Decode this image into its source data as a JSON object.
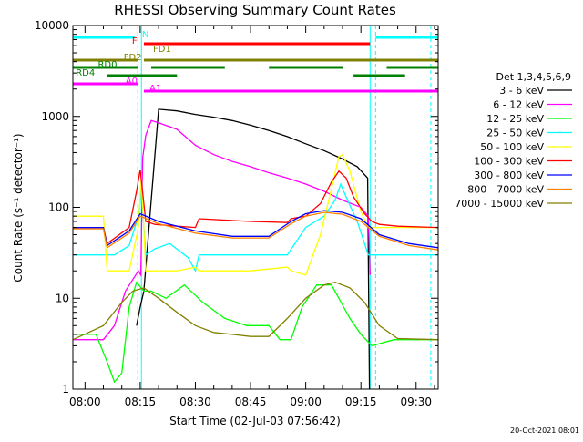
{
  "page": {
    "title": "RHESSI Observing Summary Count Rates",
    "timestamp": "20-Oct-2021 08:01"
  },
  "chart_data": {
    "type": "line",
    "title": "RHESSI Observing Summary Count Rates",
    "xlabel": "Start Time (02-Jul-03 07:56:42)",
    "ylabel": "Count Rate (s⁻¹ detector⁻¹)",
    "xlim": [
      "07:56:42",
      "09:36:00"
    ],
    "ylim": [
      1,
      10000
    ],
    "yscale": "log",
    "xticks": [
      "08:00",
      "08:15",
      "08:30",
      "08:45",
      "09:00",
      "09:15",
      "09:30"
    ],
    "yticks": [
      "1",
      "10",
      "100",
      "1000",
      "10000"
    ],
    "vlines": [
      {
        "time": "08:14:20",
        "style": "dashed",
        "color": "#00ffff"
      },
      {
        "time": "08:15:20",
        "style": "solid",
        "color": "#00ffff"
      },
      {
        "time": "09:17:30",
        "style": "solid",
        "color": "#00ffff"
      },
      {
        "time": "09:19:00",
        "style": "dashed",
        "color": "#00ffff"
      },
      {
        "time": "09:34:00",
        "style": "dashed",
        "color": "#00ffff"
      }
    ],
    "flag_rows": [
      {
        "label": "N",
        "color": "#00ffff",
        "label_time": "08:15:30",
        "segments": [
          [
            "07:56:42",
            "08:13:30"
          ],
          [
            "09:19:00",
            "09:36:00"
          ]
        ]
      },
      {
        "label": "F",
        "color": "#ff0000",
        "label_time": "08:12:45",
        "segments": [
          [
            "08:16:00",
            "09:17:30"
          ]
        ]
      },
      {
        "label": "FD1",
        "color": "#808000",
        "label_time": "08:18:30",
        "segments": []
      },
      {
        "label": "FD2",
        "color": "#808000",
        "label_time": "08:10:30",
        "segments": [
          [
            "07:56:42",
            "08:14:30"
          ],
          [
            "08:16:00",
            "09:36:00"
          ]
        ]
      },
      {
        "label": "RD0",
        "color": "#008000",
        "label_time": "08:03:30",
        "segments": [
          [
            "07:56:42",
            "08:14:20"
          ],
          [
            "08:18:00",
            "08:38:00"
          ],
          [
            "08:50:00",
            "09:10:00"
          ],
          [
            "09:22:00",
            "09:36:00"
          ]
        ]
      },
      {
        "label": "RD4",
        "color": "#008000",
        "label_time": "07:57:30",
        "segments": [
          [
            "08:06:00",
            "08:25:00"
          ],
          [
            "09:13:00",
            "09:27:00"
          ]
        ]
      },
      {
        "label": "A0",
        "color": "#ff00ff",
        "label_time": "08:11:00",
        "segments": [
          [
            "07:56:42",
            "08:14:20"
          ]
        ]
      },
      {
        "label": "A1",
        "color": "#ff00ff",
        "label_time": "08:17:30",
        "segments": [
          [
            "08:16:00",
            "09:36:00"
          ]
        ]
      }
    ],
    "legend_title": "Det 1,3,4,5,6,9",
    "legend_position": "right",
    "series": [
      {
        "name": "3 - 6 keV",
        "color": "#000000",
        "x": [
          "08:14:00",
          "08:15:00",
          "08:16:00",
          "08:20:00",
          "08:25:00",
          "08:30:00",
          "08:35:00",
          "08:40:00",
          "08:45:00",
          "08:50:00",
          "08:55:00",
          "09:00:00",
          "09:05:00",
          "09:10:00",
          "09:14:00",
          "09:16:50",
          "09:17:20"
        ],
        "y": [
          5,
          8,
          12,
          1200,
          1150,
          1050,
          980,
          900,
          800,
          700,
          600,
          500,
          420,
          340,
          280,
          210,
          1
        ]
      },
      {
        "name": "6 - 12 keV",
        "color": "#ff00ff",
        "x": [
          "07:56:42",
          "08:05:00",
          "08:08:00",
          "08:11:00",
          "08:14:30",
          "08:15:10",
          "08:15:40",
          "08:16:30",
          "08:18:00",
          "08:20:00",
          "08:25:00",
          "08:30:00",
          "08:35:00",
          "08:40:00",
          "08:45:00",
          "08:50:00",
          "08:55:00",
          "09:00:00",
          "09:05:00",
          "09:10:00",
          "09:15:00",
          "09:17:00",
          "09:17:30"
        ],
        "y": [
          3.5,
          3.5,
          5,
          12,
          20,
          18,
          350,
          620,
          900,
          850,
          720,
          480,
          380,
          320,
          280,
          240,
          210,
          180,
          150,
          120,
          100,
          80,
          18
        ]
      },
      {
        "name": "12 - 25 keV",
        "color": "#00ff00",
        "x": [
          "07:56:42",
          "08:03:00",
          "08:06:00",
          "08:08:00",
          "08:10:00",
          "08:12:00",
          "08:14:00",
          "08:16:00",
          "08:18:00",
          "08:22:00",
          "08:27:00",
          "08:32:00",
          "08:38:00",
          "08:44:00",
          "08:50:00",
          "08:53:00",
          "08:56:00",
          "08:59:00",
          "09:03:00",
          "09:07:00",
          "09:09:00",
          "09:12:00",
          "09:15:00",
          "09:18:00",
          "09:24:00",
          "09:30:00",
          "09:36:00"
        ],
        "y": [
          4,
          4,
          2,
          1.2,
          1.5,
          8,
          15,
          12,
          12,
          10,
          14,
          9,
          6,
          5,
          5,
          3.5,
          3.5,
          8,
          14,
          14,
          10,
          6,
          4,
          3,
          3.5,
          3.5,
          3.5
        ]
      },
      {
        "name": "25 - 50 keV",
        "color": "#00ffff",
        "x": [
          "07:56:42",
          "08:05:00",
          "08:08:00",
          "08:12:00",
          "08:14:30",
          "08:15:20",
          "08:16:30",
          "08:19:00",
          "08:23:00",
          "08:28:00",
          "08:30:00",
          "08:31:00",
          "08:40:00",
          "08:50:00",
          "08:55:00",
          "09:00:00",
          "09:05:00",
          "09:08:00",
          "09:09:30",
          "09:11:00",
          "09:14:00",
          "09:17:00",
          "09:20:00",
          "09:25:00",
          "09:36:00"
        ],
        "y": [
          30,
          30,
          30,
          38,
          80,
          150,
          30,
          35,
          40,
          28,
          20,
          30,
          30,
          30,
          30,
          60,
          80,
          120,
          180,
          130,
          70,
          30,
          30,
          30,
          30
        ]
      },
      {
        "name": "50 - 100 keV",
        "color": "#ffff00",
        "x": [
          "07:56:42",
          "08:05:00",
          "08:06:00",
          "08:12:00",
          "08:14:30",
          "08:15:20",
          "08:16:30",
          "08:19:00",
          "08:25:00",
          "08:30:00",
          "08:31:00",
          "08:45:00",
          "08:55:00",
          "08:56:00",
          "09:00:00",
          "09:04:00",
          "09:07:00",
          "09:09:00",
          "09:10:00",
          "09:12:00",
          "09:15:00",
          "09:17:00",
          "09:20:00",
          "09:25:00",
          "09:36:00"
        ],
        "y": [
          80,
          80,
          20,
          20,
          60,
          230,
          20,
          20,
          20,
          22,
          20,
          20,
          22,
          20,
          18,
          50,
          160,
          360,
          380,
          250,
          90,
          60,
          60,
          60,
          60
        ]
      },
      {
        "name": "100 - 300 keV",
        "color": "#ff0000",
        "x": [
          "07:56:42",
          "08:05:00",
          "08:06:00",
          "08:12:00",
          "08:14:00",
          "08:15:00",
          "08:16:30",
          "08:19:00",
          "08:25:00",
          "08:30:00",
          "08:31:00",
          "08:45:00",
          "08:55:00",
          "08:56:00",
          "09:00:00",
          "09:04:00",
          "09:07:00",
          "09:09:00",
          "09:11:00",
          "09:13:00",
          "09:16:00",
          "09:18:00",
          "09:20:00",
          "09:25:00",
          "09:36:00"
        ],
        "y": [
          60,
          60,
          40,
          60,
          150,
          260,
          70,
          65,
          62,
          60,
          75,
          70,
          68,
          75,
          80,
          110,
          190,
          250,
          210,
          130,
          85,
          70,
          65,
          62,
          60
        ]
      },
      {
        "name": "300 - 800 keV",
        "color": "#0000ff",
        "x": [
          "07:56:42",
          "08:05:00",
          "08:06:00",
          "08:12:00",
          "08:15:00",
          "08:20:00",
          "08:30:00",
          "08:40:00",
          "08:50:00",
          "08:56:00",
          "09:00:00",
          "09:05:00",
          "09:10:00",
          "09:15:00",
          "09:20:00",
          "09:28:00",
          "09:36:00"
        ],
        "y": [
          60,
          60,
          38,
          55,
          85,
          70,
          55,
          48,
          48,
          70,
          85,
          92,
          88,
          75,
          50,
          40,
          36
        ]
      },
      {
        "name": "800 - 7000 keV",
        "color": "#ff8000",
        "x": [
          "07:56:42",
          "08:05:00",
          "08:06:00",
          "08:12:00",
          "08:15:00",
          "08:20:00",
          "08:30:00",
          "08:40:00",
          "08:50:00",
          "08:56:00",
          "09:00:00",
          "09:05:00",
          "09:10:00",
          "09:15:00",
          "09:20:00",
          "09:28:00",
          "09:36:00"
        ],
        "y": [
          58,
          58,
          36,
          52,
          80,
          66,
          52,
          46,
          46,
          66,
          80,
          88,
          84,
          70,
          48,
          38,
          34
        ]
      },
      {
        "name": "7000 - 15000 keV",
        "color": "#808000",
        "x": [
          "07:56:42",
          "08:05:00",
          "08:10:00",
          "08:13:00",
          "08:16:00",
          "08:20:00",
          "08:25:00",
          "08:30:00",
          "08:35:00",
          "08:40:00",
          "08:45:00",
          "08:50:00",
          "08:55:00",
          "09:00:00",
          "09:05:00",
          "09:08:00",
          "09:12:00",
          "09:16:00",
          "09:20:00",
          "09:25:00",
          "09:36:00"
        ],
        "y": [
          3.5,
          5,
          9,
          12,
          13,
          10,
          7,
          5,
          4.2,
          4,
          3.8,
          3.8,
          6,
          10,
          14,
          15,
          13,
          9,
          5,
          3.6,
          3.5
        ]
      }
    ]
  }
}
